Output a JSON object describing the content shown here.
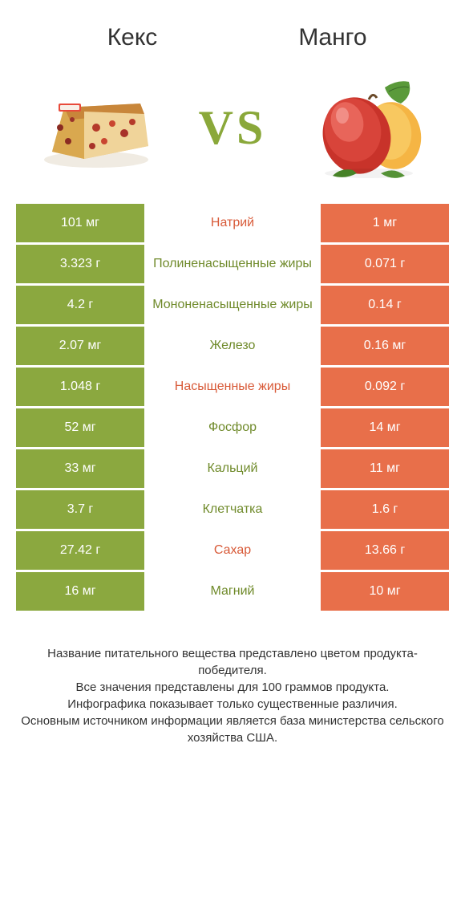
{
  "colors": {
    "green": "#8ba83f",
    "greenText": "#6f8a2a",
    "orange": "#e86f4a",
    "orangeText": "#d85a38",
    "white": "#ffffff"
  },
  "header": {
    "left": "Кекс",
    "right": "Mанго",
    "vs": "VS"
  },
  "rows": [
    {
      "left": "101 мг",
      "label": "Натрий",
      "right": "1 мг",
      "winner": "left"
    },
    {
      "left": "3.323 г",
      "label": "Полиненасыщенные жиры",
      "right": "0.071 г",
      "winner": "left"
    },
    {
      "left": "4.2 г",
      "label": "Мононенасыщенные жиры",
      "right": "0.14 г",
      "winner": "left"
    },
    {
      "left": "2.07 мг",
      "label": "Железо",
      "right": "0.16 мг",
      "winner": "left"
    },
    {
      "left": "1.048 г",
      "label": "Насыщенные жиры",
      "right": "0.092 г",
      "winner": "left"
    },
    {
      "left": "52 мг",
      "label": "Фосфор",
      "right": "14 мг",
      "winner": "left"
    },
    {
      "left": "33 мг",
      "label": "Кальций",
      "right": "11 мг",
      "winner": "left"
    },
    {
      "left": "3.7 г",
      "label": "Клетчатка",
      "right": "1.6 г",
      "winner": "left"
    },
    {
      "left": "27.42 г",
      "label": "Сахар",
      "right": "13.66 г",
      "winner": "left"
    },
    {
      "left": "16 мг",
      "label": "Магний",
      "right": "10 мг",
      "winner": "left"
    }
  ],
  "labelColorByIndex": [
    "orange",
    "green",
    "green",
    "green",
    "orange",
    "green",
    "green",
    "green",
    "orange",
    "green"
  ],
  "footer": "Название питательного вещества представлено цветом продукта-победителя.\nВсе значения представлены для 100 граммов продукта.\nИнфографика показывает только существенные различия.\nОсновным источником информации является база министерства сельского хозяйства США."
}
